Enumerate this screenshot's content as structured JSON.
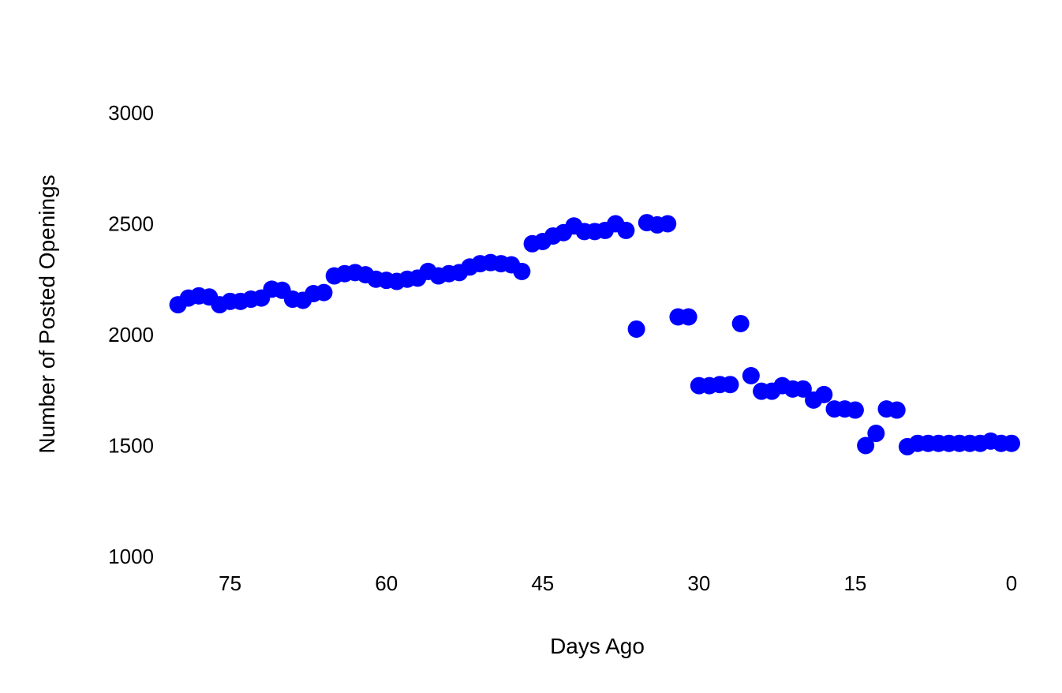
{
  "chart_data": {
    "type": "scatter",
    "title": "",
    "xlabel": "Days Ago",
    "ylabel": "Number of Posted Openings",
    "x_reversed": true,
    "xlim": [
      80,
      0
    ],
    "ylim": [
      1000,
      3000
    ],
    "x_ticks": [
      75,
      60,
      45,
      30,
      15,
      0
    ],
    "y_ticks": [
      3000,
      2500,
      2000,
      1500,
      1000
    ],
    "grid": false,
    "marker_color": "#0000ff",
    "series": [
      {
        "x": [
          80,
          79,
          78,
          77,
          76,
          75,
          74,
          73,
          72,
          71,
          70,
          69,
          68,
          67,
          66,
          65,
          64,
          63,
          62,
          61,
          60,
          59,
          58,
          57,
          56,
          55,
          54,
          53,
          52,
          51,
          50,
          49,
          48,
          47,
          46,
          45,
          44,
          43,
          42,
          41,
          40,
          39,
          38,
          37,
          36,
          35,
          34,
          33,
          32,
          31,
          30,
          29,
          28,
          27,
          26,
          25,
          24,
          23,
          22,
          21,
          20,
          19,
          18,
          17,
          16,
          15,
          14,
          13,
          12,
          11,
          10,
          9,
          8,
          7,
          6,
          5,
          4,
          3,
          2,
          1,
          0
        ],
        "y": [
          2135,
          2165,
          2175,
          2170,
          2135,
          2150,
          2150,
          2160,
          2165,
          2205,
          2200,
          2160,
          2155,
          2185,
          2190,
          2265,
          2275,
          2280,
          2270,
          2250,
          2245,
          2240,
          2250,
          2255,
          2285,
          2265,
          2275,
          2280,
          2305,
          2320,
          2325,
          2320,
          2315,
          2285,
          2410,
          2420,
          2445,
          2460,
          2490,
          2465,
          2465,
          2470,
          2500,
          2470,
          2025,
          2505,
          2495,
          2500,
          2080,
          2080,
          1770,
          1770,
          1775,
          1775,
          2050,
          1815,
          1745,
          1745,
          1770,
          1755,
          1755,
          1705,
          1730,
          1665,
          1665,
          1660,
          1500,
          1555,
          1665,
          1660,
          1495,
          1510,
          1510,
          1510,
          1510,
          1510,
          1510,
          1510,
          1520,
          1510,
          1510
        ]
      }
    ]
  }
}
